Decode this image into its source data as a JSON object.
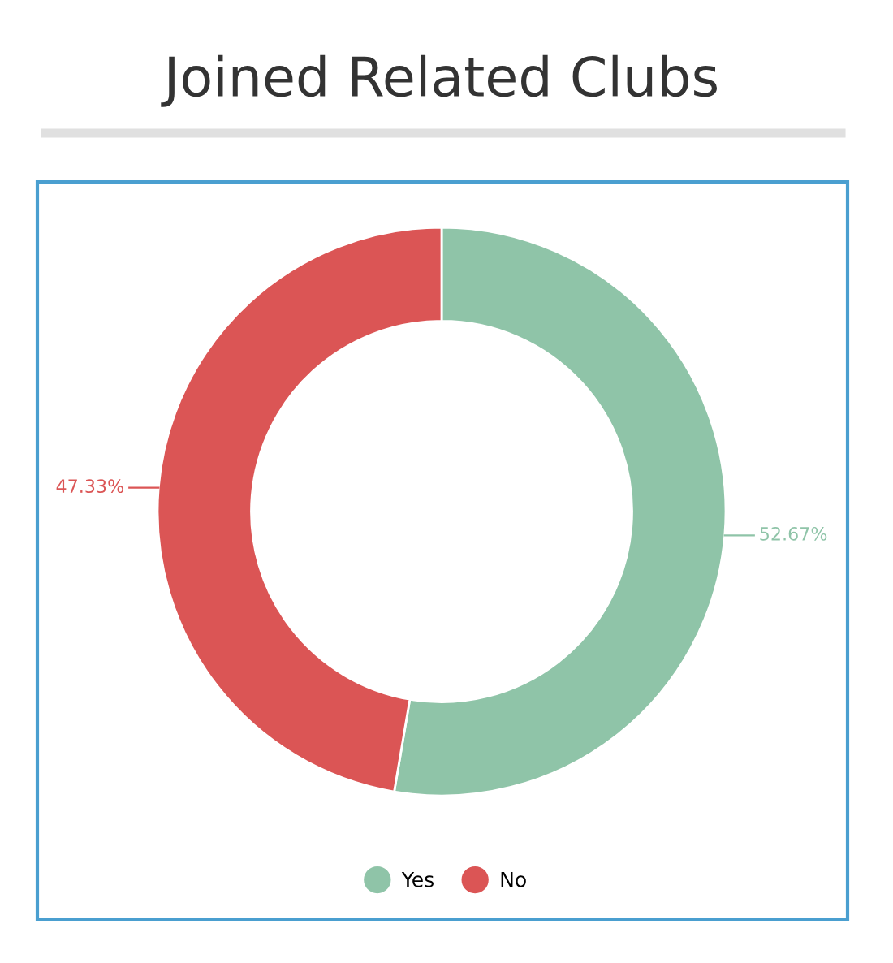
{
  "chart_data": {
    "type": "donut",
    "title": "Joined Related Clubs",
    "categories": [
      "Yes",
      "No"
    ],
    "values": [
      52.67,
      47.33
    ],
    "colors": [
      "#8fc4a8",
      "#db5555"
    ],
    "value_labels": [
      "52.67%",
      "47.33%"
    ],
    "legend": "bottom"
  }
}
